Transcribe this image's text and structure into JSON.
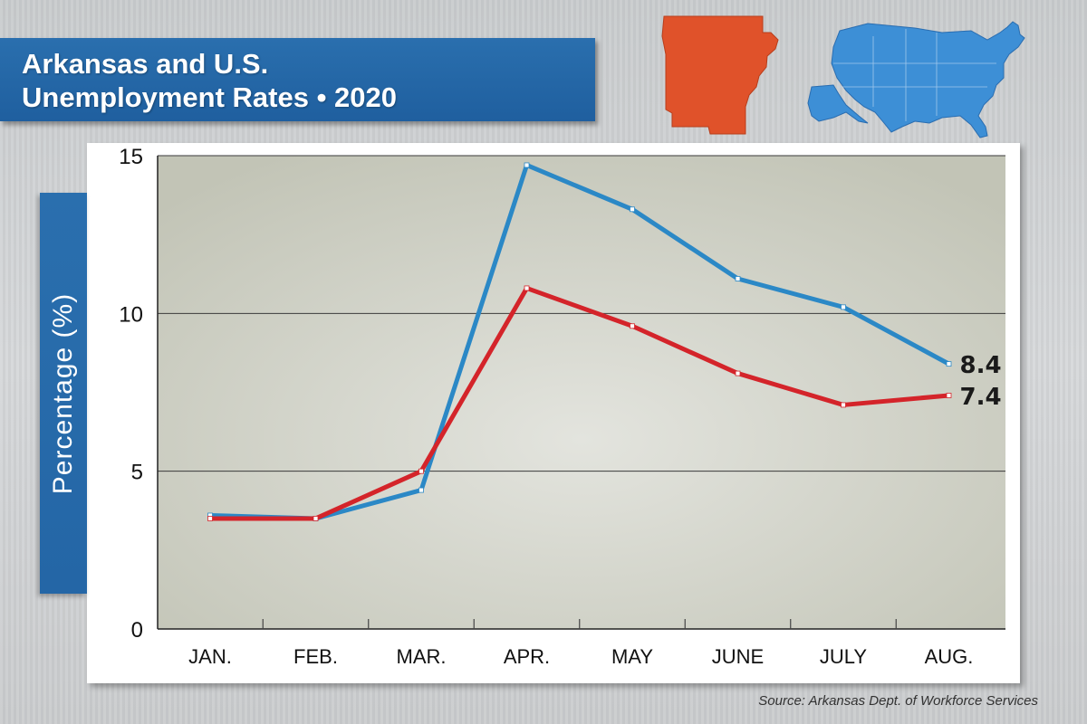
{
  "title": {
    "line1": "Arkansas and U.S.",
    "line2": "Unemployment Rates • 2020"
  },
  "source": "Source: Arkansas Dept. of Workforce Services",
  "icons": [
    "arkansas-state-map-icon",
    "us-map-icon"
  ],
  "colors": {
    "banner": "#2a6fae",
    "us_series": "#2b88c6",
    "arkansas_series": "#d4242a",
    "arkansas_map": "#e0522a",
    "us_map": "#3d8fd6"
  },
  "chart_data": {
    "type": "line",
    "title": "Arkansas and U.S. Unemployment Rates • 2020",
    "xlabel": "",
    "ylabel": "Percentage (%)",
    "categories": [
      "JAN.",
      "FEB.",
      "MAR.",
      "APR.",
      "MAY",
      "JUNE",
      "JULY",
      "AUG."
    ],
    "yticks": [
      "0",
      "5",
      "10",
      "15"
    ],
    "ylim": [
      0,
      15
    ],
    "grid": true,
    "series": [
      {
        "values": [
          3.6,
          3.5,
          4.4,
          14.7,
          13.3,
          11.1,
          10.2,
          8.4
        ],
        "color": "#2b88c6",
        "end_label": "8.4"
      },
      {
        "values": [
          3.5,
          3.5,
          5.0,
          10.8,
          9.6,
          8.1,
          7.1,
          7.4
        ],
        "color": "#d4242a",
        "end_label": "7.4"
      }
    ],
    "annotations": [
      "8.4",
      "7.4"
    ]
  }
}
